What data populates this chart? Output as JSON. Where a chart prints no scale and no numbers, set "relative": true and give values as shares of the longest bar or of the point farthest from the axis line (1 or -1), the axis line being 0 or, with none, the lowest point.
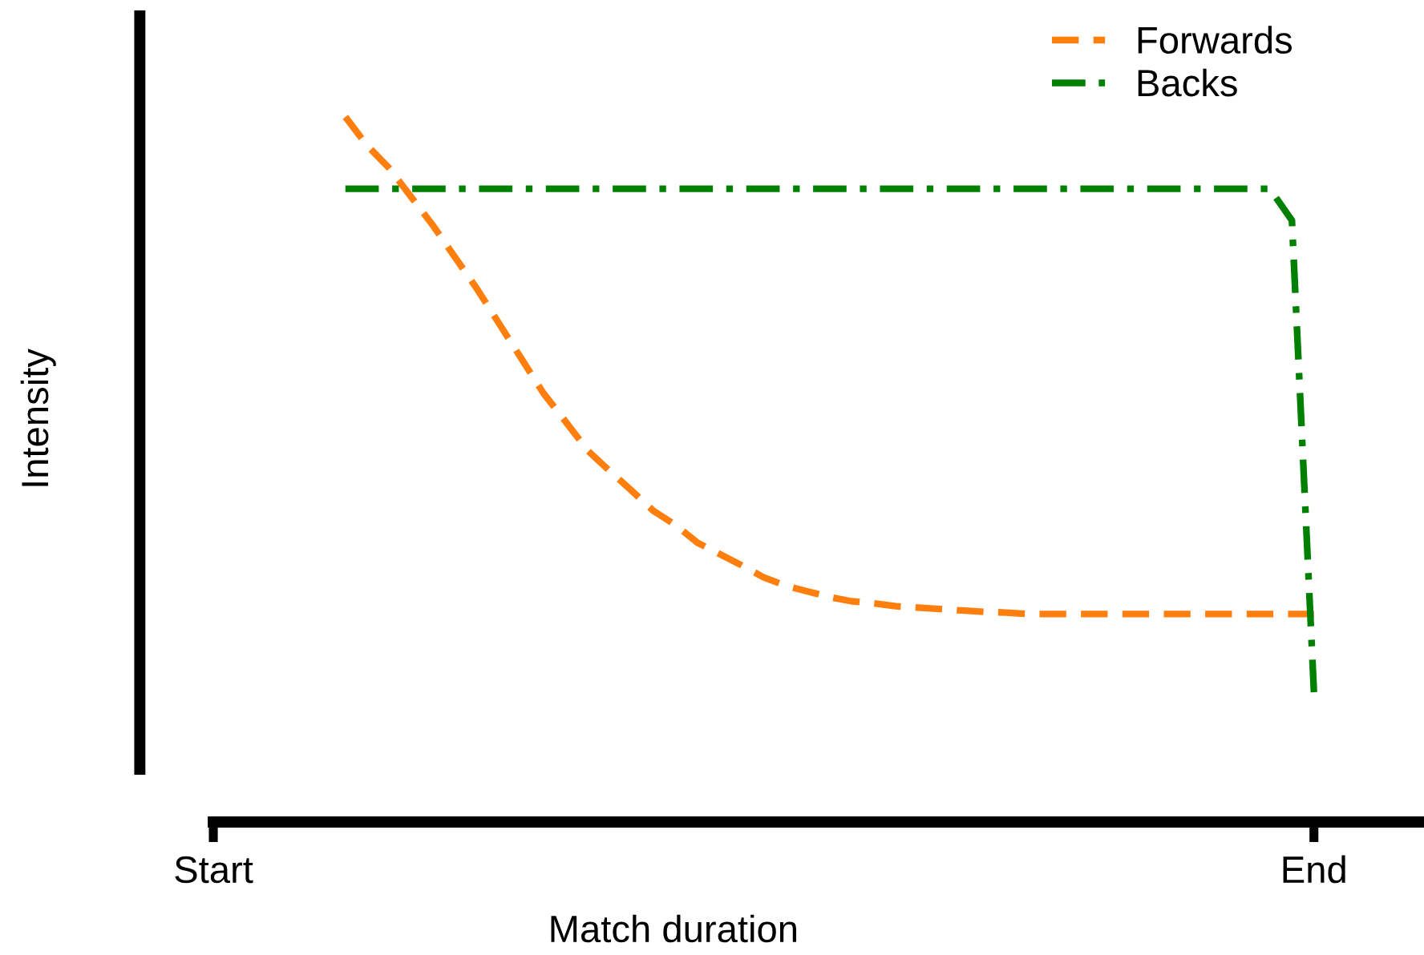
{
  "chart_data": {
    "type": "line",
    "relative": true,
    "xlabel": "Match duration",
    "ylabel": "Intensity",
    "categories": [
      "Start",
      null,
      null,
      null,
      null,
      null,
      null,
      null,
      null,
      null,
      null,
      null,
      null,
      null,
      null,
      null,
      null,
      null,
      null,
      null,
      null,
      null,
      null,
      null,
      null,
      null,
      null,
      null,
      null,
      null,
      null,
      null,
      null,
      null,
      null,
      null,
      null,
      null,
      null,
      null,
      null,
      null,
      null,
      null,
      null,
      null,
      null,
      null,
      null,
      null,
      "End"
    ],
    "tick_labels": "x",
    "legend": "top right",
    "marker": "none",
    "series": [
      {
        "name": "Forwards",
        "color": "#ff7f0e",
        "line_style": "dashed",
        "values": [
          null,
          null,
          null,
          null,
          null,
          null,
          1.0,
          0.959,
          0.927,
          0.886,
          0.845,
          0.8,
          0.755,
          0.706,
          0.657,
          0.608,
          0.568,
          0.527,
          0.498,
          0.47,
          0.441,
          0.421,
          0.396,
          0.38,
          0.364,
          0.347,
          0.335,
          0.327,
          0.319,
          0.313,
          0.31,
          0.306,
          0.304,
          0.302,
          0.3,
          0.298,
          0.297,
          0.295,
          0.295,
          0.295,
          0.295,
          0.295,
          0.295,
          0.295,
          0.295,
          0.295,
          0.295,
          0.295,
          0.295,
          0.295,
          0.295
        ]
      },
      {
        "name": "Backs",
        "color": "#008000",
        "line_style": "dashdot",
        "values": [
          null,
          null,
          null,
          null,
          null,
          null,
          0.898,
          0.898,
          0.898,
          0.898,
          0.898,
          0.898,
          0.898,
          0.898,
          0.898,
          0.898,
          0.898,
          0.898,
          0.898,
          0.898,
          0.898,
          0.898,
          0.898,
          0.898,
          0.898,
          0.898,
          0.898,
          0.898,
          0.898,
          0.898,
          0.898,
          0.898,
          0.898,
          0.898,
          0.898,
          0.898,
          0.898,
          0.898,
          0.898,
          0.898,
          0.898,
          0.898,
          0.898,
          0.898,
          0.898,
          0.898,
          0.898,
          0.898,
          0.898,
          0.853,
          0.184
        ]
      }
    ]
  }
}
